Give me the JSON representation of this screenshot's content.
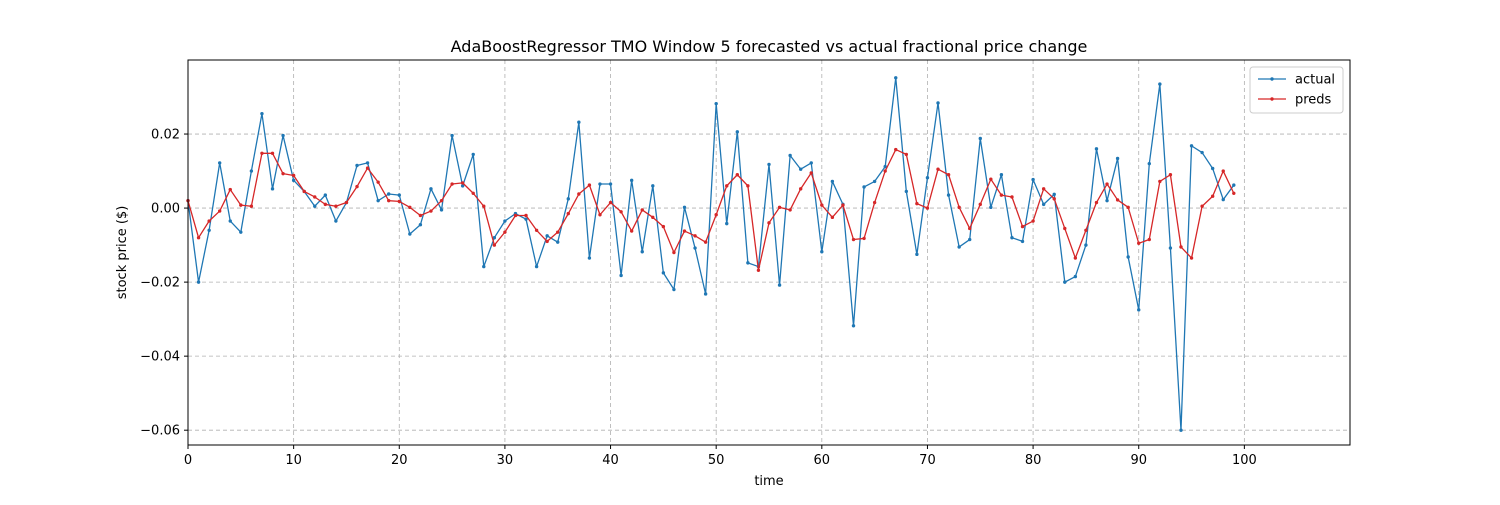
{
  "chart_data": {
    "type": "line",
    "title": "AdaBoostRegressor TMO Window 5 forecasted vs actual fractional price change",
    "xlabel": "time",
    "ylabel": "stock price ($)",
    "xlim": [
      0,
      110
    ],
    "ylim": [
      -0.064,
      0.04
    ],
    "xticks": [
      0,
      10,
      20,
      30,
      40,
      50,
      60,
      70,
      80,
      90,
      100
    ],
    "xtick_labels": [
      "0",
      "10",
      "20",
      "30",
      "40",
      "50",
      "60",
      "70",
      "80",
      "90",
      "100"
    ],
    "yticks": [
      0.02,
      0.0,
      -0.02,
      -0.04,
      -0.06
    ],
    "ytick_labels": [
      "0.02",
      "0.00",
      "−0.02",
      "−0.04",
      "−0.06"
    ],
    "grid": true,
    "legend_position": "top-right",
    "x": [
      0,
      1,
      2,
      3,
      4,
      5,
      6,
      7,
      8,
      9,
      10,
      11,
      12,
      13,
      14,
      15,
      16,
      17,
      18,
      19,
      20,
      21,
      22,
      23,
      24,
      25,
      26,
      27,
      28,
      29,
      30,
      31,
      32,
      33,
      34,
      35,
      36,
      37,
      38,
      39,
      40,
      41,
      42,
      43,
      44,
      45,
      46,
      47,
      48,
      49,
      50,
      51,
      52,
      53,
      54,
      55,
      56,
      57,
      58,
      59,
      60,
      61,
      62,
      63,
      64,
      65,
      66,
      67,
      68,
      69,
      70,
      71,
      72,
      73,
      74,
      75,
      76,
      77,
      78,
      79,
      80,
      81,
      82,
      83,
      84,
      85,
      86,
      87,
      88,
      89,
      90,
      91,
      92,
      93,
      94,
      95,
      96,
      97,
      98,
      99
    ],
    "series": [
      {
        "name": "actual",
        "color": "#1f77b4",
        "values": [
          0.002,
          -0.02,
          -0.006,
          0.0122,
          -0.0035,
          -0.0065,
          0.01,
          0.0255,
          0.0052,
          0.0196,
          0.0075,
          0.0045,
          0.0005,
          0.0035,
          -0.0035,
          0.0015,
          0.0115,
          0.0122,
          0.002,
          0.0038,
          0.0035,
          -0.007,
          -0.0045,
          0.0052,
          -0.0005,
          0.0196,
          0.006,
          0.0145,
          -0.0158,
          -0.008,
          -0.0035,
          -0.0015,
          -0.003,
          -0.0158,
          -0.0075,
          -0.0092,
          0.0025,
          0.0232,
          -0.0135,
          0.0065,
          0.0065,
          -0.0182,
          0.0075,
          -0.0118,
          0.006,
          -0.0175,
          -0.022,
          0.0002,
          -0.0108,
          -0.0232,
          0.0282,
          -0.0042,
          0.0206,
          -0.0148,
          -0.0158,
          0.0118,
          -0.0208,
          0.0142,
          0.0105,
          0.0122,
          -0.0118,
          0.0072,
          0.001,
          -0.0318,
          0.0057,
          0.0072,
          0.0112,
          0.0352,
          0.0045,
          -0.0125,
          0.0082,
          0.0284,
          0.0035,
          -0.0105,
          -0.0085,
          0.0188,
          0.0002,
          0.009,
          -0.008,
          -0.009,
          0.0077,
          0.001,
          0.0037,
          -0.02,
          -0.0185,
          -0.01,
          0.016,
          0.002,
          0.0134,
          -0.0132,
          -0.0275,
          0.012,
          0.0335,
          -0.0108,
          -0.06,
          0.0168,
          0.015,
          0.0107,
          0.0023,
          0.0062
        ]
      },
      {
        "name": "preds",
        "color": "#d62728",
        "values": [
          0.002,
          -0.008,
          -0.0035,
          -0.0008,
          0.005,
          0.0008,
          0.0005,
          0.0148,
          0.0148,
          0.0093,
          0.0088,
          0.0045,
          0.003,
          0.001,
          0.0005,
          0.0015,
          0.0058,
          0.0108,
          0.007,
          0.002,
          0.0018,
          0.0002,
          -0.002,
          -0.0008,
          0.002,
          0.0065,
          0.0068,
          0.004,
          0.0005,
          -0.01,
          -0.0065,
          -0.002,
          -0.002,
          -0.006,
          -0.009,
          -0.0065,
          -0.0015,
          0.0038,
          0.0062,
          -0.0018,
          0.0015,
          -0.001,
          -0.0062,
          -0.0005,
          -0.0025,
          -0.005,
          -0.012,
          -0.0062,
          -0.0075,
          -0.0092,
          -0.0018,
          0.006,
          0.009,
          0.006,
          -0.0168,
          -0.004,
          0.0002,
          -0.0005,
          0.0052,
          0.0095,
          0.0008,
          -0.0025,
          0.0008,
          -0.0085,
          -0.0082,
          0.0015,
          0.01,
          0.0158,
          0.0145,
          0.0012,
          0.0,
          0.0105,
          0.009,
          0.0002,
          -0.0055,
          0.001,
          0.0078,
          0.0035,
          0.003,
          -0.005,
          -0.0035,
          0.0052,
          0.0025,
          -0.0055,
          -0.0135,
          -0.006,
          0.0015,
          0.0065,
          0.0022,
          0.0002,
          -0.0095,
          -0.0085,
          0.0072,
          0.009,
          -0.0105,
          -0.0135,
          0.0005,
          0.0032,
          0.01,
          0.004
        ]
      }
    ]
  }
}
